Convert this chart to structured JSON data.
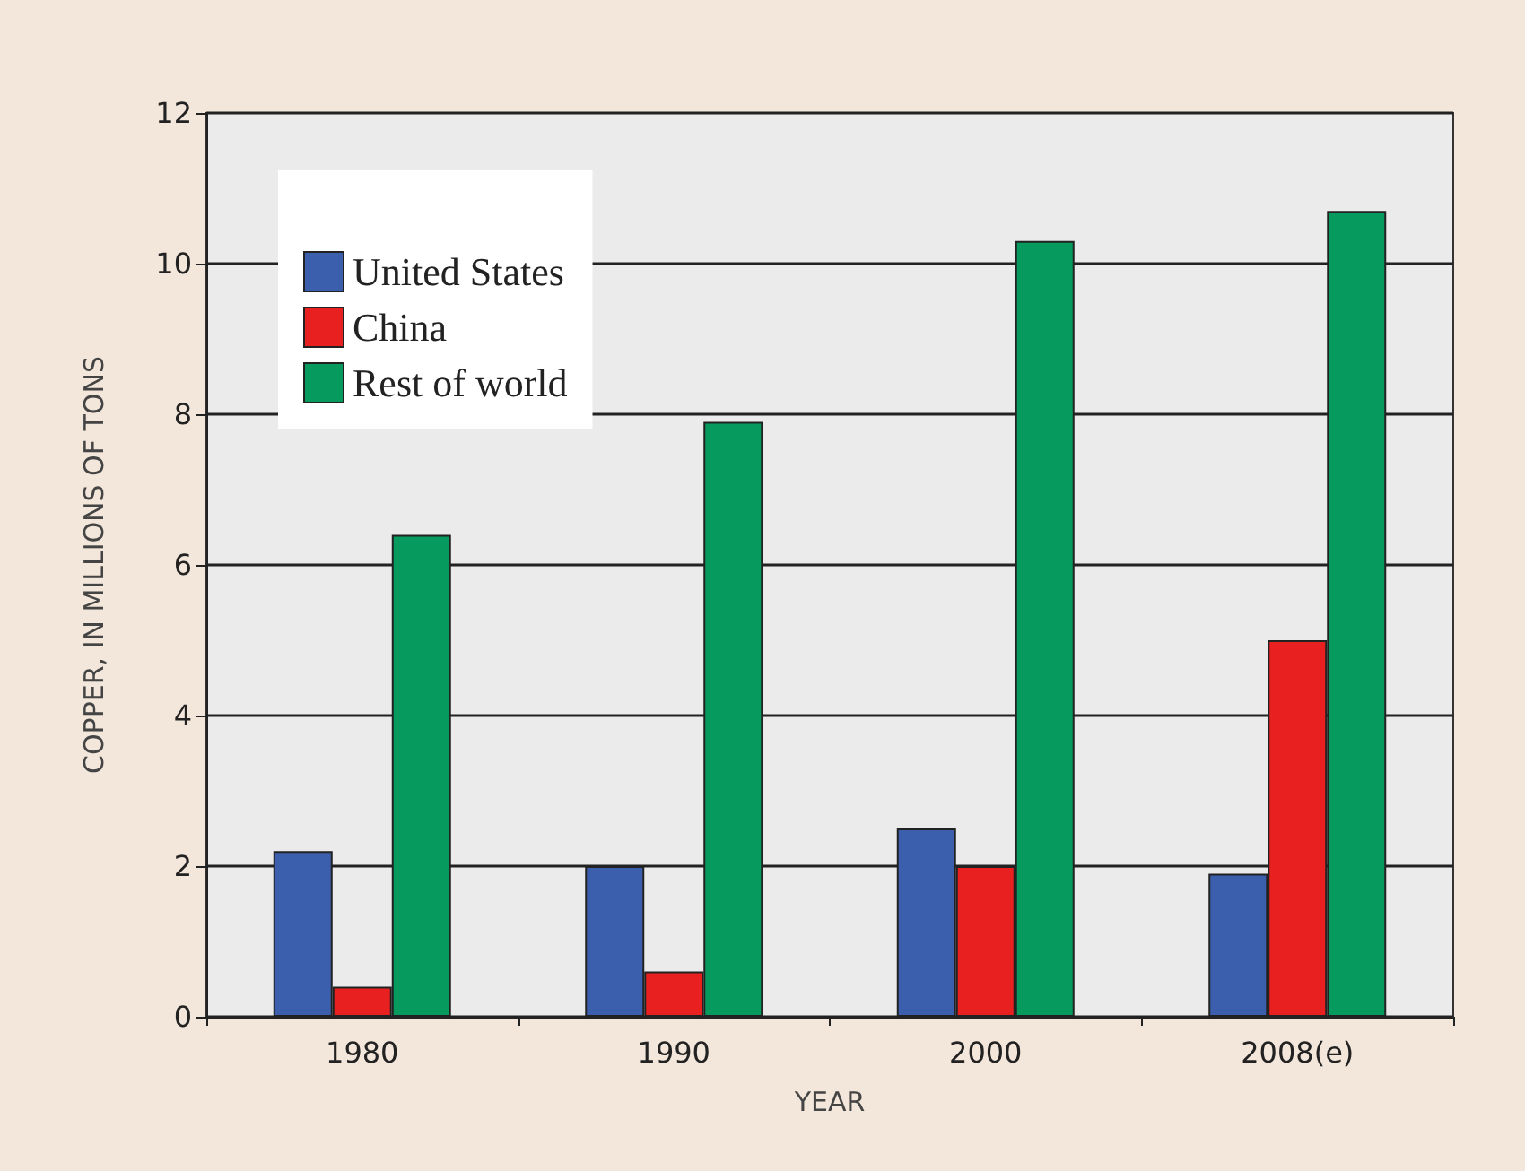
{
  "chart_data": {
    "type": "bar",
    "xlabel": "YEAR",
    "ylabel": "COPPER, IN MILLIONS OF TONS",
    "categories": [
      "1980",
      "1990",
      "2000",
      "2008(e)"
    ],
    "series": [
      {
        "name": "United States",
        "color": "#3b5fad",
        "values": [
          2.2,
          2.0,
          2.5,
          1.9
        ]
      },
      {
        "name": "China",
        "color": "#e82020",
        "values": [
          0.4,
          0.6,
          2.0,
          5.0
        ]
      },
      {
        "name": "Rest of world",
        "color": "#069a5e",
        "values": [
          6.4,
          7.9,
          10.3,
          10.7
        ]
      }
    ],
    "ylim": [
      0,
      12
    ],
    "yticks": [
      0,
      2,
      4,
      6,
      8,
      10,
      12
    ],
    "grid": "y",
    "legend": "top left"
  }
}
